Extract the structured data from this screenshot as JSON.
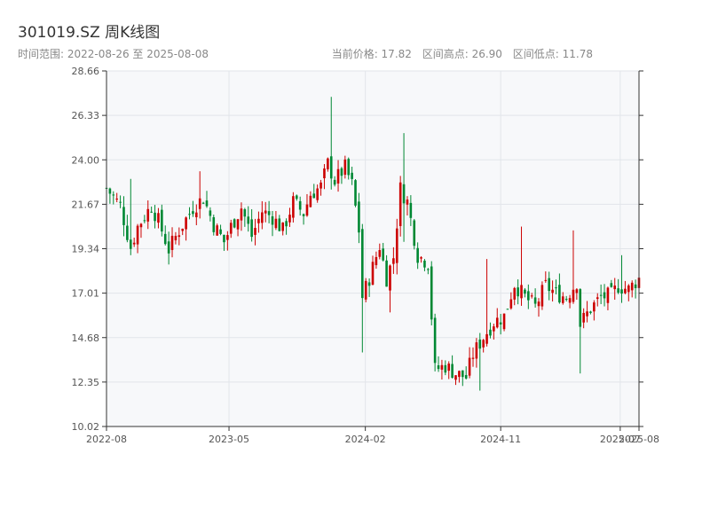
{
  "header": {
    "title": "301019.SZ 周K线图",
    "range_label": "时间范围: 2022-08-26 至 2025-08-08",
    "current_price_label": "当前价格: 17.82",
    "high_label": "区间高点: 26.90",
    "low_label": "区间低点: 11.78"
  },
  "colors": {
    "up": "#cc0000",
    "down": "#008833",
    "plot_bg": "#f7f8fa",
    "grid": "#e2e5ea",
    "axis": "#333333"
  },
  "chart_data": {
    "type": "candlestick",
    "title": "301019.SZ 周K线图",
    "xlabel": "",
    "ylabel": "",
    "ylim": [
      10.02,
      28.66
    ],
    "y_ticks": [
      10.02,
      12.35,
      14.68,
      17.01,
      19.34,
      21.67,
      24.0,
      26.33,
      28.66
    ],
    "x_range": [
      "2022-08-26",
      "2025-08-08"
    ],
    "x_ticks": [
      {
        "label": "2022-08",
        "date": "2022-08-26"
      },
      {
        "label": "2023-05",
        "date": "2023-05-01"
      },
      {
        "label": "2024-02",
        "date": "2024-02-01"
      },
      {
        "label": "2024-11",
        "date": "2024-11-01"
      },
      {
        "label": "2025-07",
        "date": "2025-07-01"
      },
      {
        "label": "2025-08",
        "date": "2025-08-08"
      }
    ],
    "grid": true,
    "period": "weekly",
    "anchors": [
      [
        "2022-08-26",
        22.5
      ],
      [
        "2022-09-23",
        21.6
      ],
      [
        "2022-10-14",
        19.4
      ],
      [
        "2022-10-28",
        20.5
      ],
      [
        "2022-11-25",
        21.6
      ],
      [
        "2022-12-09",
        20.8
      ],
      [
        "2022-12-30",
        19.3
      ],
      [
        "2023-01-20",
        20.3
      ],
      [
        "2023-02-17",
        21.5
      ],
      [
        "2023-03-10",
        22.0
      ],
      [
        "2023-03-31",
        20.6
      ],
      [
        "2023-04-21",
        19.7
      ],
      [
        "2023-05-05",
        20.5
      ],
      [
        "2023-05-26",
        21.5
      ],
      [
        "2023-06-16",
        20.0
      ],
      [
        "2023-07-07",
        21.3
      ],
      [
        "2023-07-28",
        21.0
      ],
      [
        "2023-08-18",
        20.3
      ],
      [
        "2023-09-08",
        21.8
      ],
      [
        "2023-09-29",
        21.2
      ],
      [
        "2023-10-13",
        22.2
      ],
      [
        "2023-11-03",
        22.6
      ],
      [
        "2023-11-17",
        23.8
      ],
      [
        "2023-12-01",
        22.9
      ],
      [
        "2023-12-22",
        23.6
      ],
      [
        "2024-01-05",
        22.7
      ],
      [
        "2024-01-19",
        20.3
      ],
      [
        "2024-01-26",
        16.8
      ],
      [
        "2024-02-09",
        17.8
      ],
      [
        "2024-03-01",
        19.5
      ],
      [
        "2024-03-15",
        17.8
      ],
      [
        "2024-03-29",
        18.9
      ],
      [
        "2024-04-12",
        22.5
      ],
      [
        "2024-04-26",
        21.8
      ],
      [
        "2024-05-17",
        19.0
      ],
      [
        "2024-06-07",
        18.6
      ],
      [
        "2024-06-21",
        13.0
      ],
      [
        "2024-07-12",
        13.2
      ],
      [
        "2024-08-02",
        12.8
      ],
      [
        "2024-08-23",
        12.6
      ],
      [
        "2024-09-06",
        13.8
      ],
      [
        "2024-09-27",
        14.7
      ],
      [
        "2024-10-18",
        15.5
      ],
      [
        "2024-11-08",
        15.8
      ],
      [
        "2024-11-29",
        17.5
      ],
      [
        "2024-12-20",
        16.8
      ],
      [
        "2025-01-10",
        16.3
      ],
      [
        "2025-01-31",
        17.4
      ],
      [
        "2025-02-21",
        17.0
      ],
      [
        "2025-03-14",
        16.8
      ],
      [
        "2025-04-04",
        17.6
      ],
      [
        "2025-04-11",
        15.4
      ],
      [
        "2025-05-02",
        16.2
      ],
      [
        "2025-05-23",
        16.8
      ],
      [
        "2025-06-13",
        16.9
      ],
      [
        "2025-06-27",
        17.4
      ],
      [
        "2025-07-18",
        17.2
      ],
      [
        "2025-08-08",
        17.82
      ]
    ],
    "spikes": [
      [
        "2022-08-26",
        24.5,
        21.5
      ],
      [
        "2022-10-14",
        23.0,
        19.0
      ],
      [
        "2023-03-03",
        23.4,
        21.0
      ],
      [
        "2023-11-24",
        27.3,
        22.6
      ],
      [
        "2024-01-26",
        17.0,
        13.9
      ],
      [
        "2024-03-22",
        18.5,
        16.0
      ],
      [
        "2024-04-19",
        25.4,
        19.7
      ],
      [
        "2024-09-20",
        14.8,
        11.9
      ],
      [
        "2024-10-04",
        18.8,
        14.3
      ],
      [
        "2024-12-13",
        20.5,
        16.5
      ],
      [
        "2025-03-28",
        20.3,
        16.6
      ],
      [
        "2025-04-11",
        16.0,
        12.8
      ],
      [
        "2025-07-04",
        19.0,
        16.5
      ]
    ]
  }
}
